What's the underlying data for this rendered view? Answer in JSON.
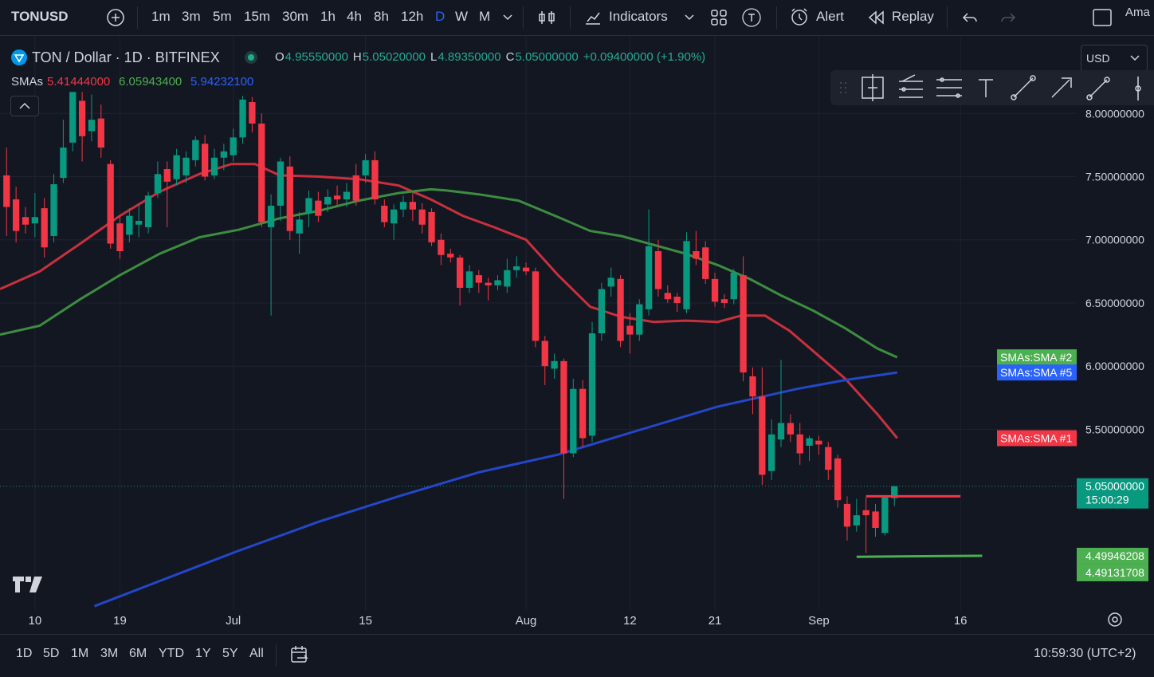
{
  "toolbar": {
    "symbol": "TONUSD",
    "intervals": [
      "1m",
      "3m",
      "5m",
      "15m",
      "30m",
      "1h",
      "4h",
      "8h",
      "12h",
      "D",
      "W",
      "M"
    ],
    "indicators": "Indicators",
    "alert": "Alert",
    "replay": "Replay",
    "account": "Ama"
  },
  "legend": {
    "title": "TON / Dollar · 1D · BITFINEX",
    "ohlc": [
      [
        "O",
        "4.95550000"
      ],
      [
        "H",
        "5.05020000"
      ],
      [
        "L",
        "4.89350000"
      ],
      [
        "C",
        "5.05000000"
      ]
    ],
    "change": "+0.09400000 (+1.90%)",
    "sma_label": "SMAs",
    "sma_values": [
      "5.41444000",
      "6.05943400",
      "5.94232100"
    ],
    "currency": "USD"
  },
  "bottom_bar": {
    "ranges": [
      "1D",
      "5D",
      "1M",
      "3M",
      "6M",
      "YTD",
      "1Y",
      "5Y",
      "All"
    ],
    "clock": "10:59:30 (UTC+2)"
  },
  "chart_data": {
    "type": "candlestick",
    "up_color": "#089981",
    "down_color": "#f23645",
    "open": [
      7.51,
      7.32,
      7.18,
      7.13,
      7.25,
      7.03,
      7.49,
      7.77,
      8.1,
      7.86,
      7.96,
      7.6,
      7.13,
      7.04,
      7.12,
      7.1,
      7.37,
      7.56,
      7.48,
      7.51,
      7.63,
      7.76,
      7.51,
      7.65,
      7.67,
      7.81,
      8.09,
      7.92,
      7.1,
      7.27,
      7.58,
      7.05,
      7.21,
      7.31,
      7.28,
      7.35,
      7.32,
      7.51,
      7.51,
      7.63,
      7.27,
      7.13,
      7.24,
      7.3,
      7.24,
      7.22,
      7.0,
      6.89,
      6.86,
      6.62,
      6.72,
      6.66,
      6.64,
      6.63,
      6.76,
      6.78,
      6.75,
      6.2,
      5.98,
      6.04,
      5.31,
      5.82,
      5.45,
      6.26,
      6.63,
      6.69,
      6.32,
      6.25,
      6.45,
      6.91,
      6.58,
      6.55,
      6.45,
      6.91,
      6.94,
      6.69,
      6.53,
      6.53,
      6.72,
      5.92,
      5.76,
      5.17,
      5.42,
      5.55,
      5.46,
      5.37,
      5.41,
      5.36,
      5.27,
      4.91,
      4.74,
      4.86,
      4.85,
      4.68,
      4.9555
    ],
    "high": [
      7.73,
      7.42,
      7.26,
      7.37,
      7.33,
      7.52,
      7.95,
      8.17,
      8.17,
      8.15,
      8.07,
      7.63,
      7.19,
      7.25,
      7.28,
      7.38,
      7.62,
      7.62,
      7.72,
      7.7,
      7.82,
      7.83,
      7.72,
      7.76,
      7.88,
      8.14,
      8.13,
      8.0,
      7.36,
      7.65,
      7.66,
      7.22,
      7.39,
      7.38,
      7.4,
      7.43,
      7.45,
      7.6,
      7.68,
      7.7,
      7.32,
      7.28,
      7.35,
      7.37,
      7.29,
      7.25,
      7.05,
      6.93,
      6.88,
      6.8,
      6.76,
      6.7,
      6.72,
      6.85,
      6.87,
      6.82,
      6.78,
      6.24,
      6.1,
      6.06,
      5.9,
      5.89,
      6.35,
      6.66,
      6.78,
      6.72,
      6.42,
      6.53,
      7.24,
      7.0,
      6.64,
      6.58,
      7.06,
      7.07,
      6.99,
      6.74,
      6.57,
      6.77,
      6.87,
      5.99,
      5.99,
      5.58,
      6.05,
      5.62,
      5.55,
      5.45,
      5.45,
      5.4,
      5.3,
      4.97,
      4.95,
      4.96,
      4.91,
      4.98,
      5.0502
    ],
    "low": [
      7.03,
      6.98,
      7.05,
      7.02,
      6.86,
      6.98,
      7.45,
      7.7,
      7.62,
      7.78,
      7.65,
      6.93,
      6.85,
      6.98,
      7.02,
      7.05,
      7.33,
      7.1,
      7.43,
      7.45,
      7.58,
      7.47,
      7.48,
      7.55,
      7.62,
      7.76,
      7.85,
      7.1,
      6.4,
      7.15,
      7.0,
      6.89,
      7.1,
      7.14,
      7.22,
      7.27,
      7.26,
      7.27,
      7.45,
      7.28,
      7.1,
      7.0,
      7.18,
      7.15,
      7.05,
      6.95,
      6.8,
      6.82,
      6.48,
      6.58,
      6.58,
      6.52,
      6.6,
      6.58,
      6.7,
      6.72,
      6.15,
      5.85,
      5.9,
      4.95,
      5.28,
      5.36,
      5.4,
      6.2,
      6.55,
      6.15,
      6.1,
      6.2,
      6.4,
      6.55,
      6.5,
      6.43,
      6.42,
      6.8,
      6.65,
      6.47,
      6.46,
      6.49,
      5.88,
      5.62,
      5.06,
      5.1,
      5.36,
      5.4,
      5.22,
      5.25,
      5.3,
      5.1,
      4.88,
      4.62,
      4.69,
      4.52,
      4.65,
      4.66,
      4.8935
    ],
    "close": [
      7.26,
      7.07,
      7.12,
      7.18,
      6.94,
      7.44,
      7.73,
      8.17,
      7.82,
      7.95,
      7.73,
      6.97,
      6.91,
      7.19,
      7.15,
      7.35,
      7.52,
      7.46,
      7.67,
      7.65,
      7.79,
      7.5,
      7.65,
      7.7,
      7.81,
      8.11,
      7.92,
      7.14,
      7.27,
      7.62,
      7.07,
      7.16,
      7.33,
      7.19,
      7.34,
      7.32,
      7.38,
      7.31,
      7.63,
      7.32,
      7.14,
      7.24,
      7.3,
      7.24,
      7.12,
      6.98,
      6.88,
      6.86,
      6.62,
      6.75,
      6.66,
      6.64,
      6.68,
      6.76,
      6.79,
      6.75,
      6.2,
      6.0,
      6.04,
      5.31,
      5.82,
      5.43,
      6.26,
      6.61,
      6.7,
      6.2,
      6.25,
      6.49,
      6.95,
      6.61,
      6.53,
      6.5,
      6.99,
      6.85,
      6.69,
      6.51,
      6.5,
      6.74,
      5.95,
      5.76,
      5.14,
      5.46,
      5.55,
      5.46,
      5.31,
      5.43,
      5.38,
      5.18,
      4.94,
      4.73,
      4.82,
      4.82,
      4.72,
      4.96,
      5.05
    ],
    "last_price_label": "5.05000000",
    "countdown": "15:00:29",
    "series": [
      {
        "name": "SMAs:SMA #1",
        "color": "#f23645",
        "line_color": "#c8303e",
        "x": [
          -0.7,
          3.5,
          7.8,
          12.0,
          16.2,
          20.4,
          23.8,
          26.3,
          28.9,
          33.1,
          37.3,
          41.5,
          44.9,
          48.3,
          51.6,
          55.0,
          58.4,
          61.8,
          65.1,
          68.5,
          71.9,
          75.3,
          77.8,
          80.3,
          82.9,
          85.4,
          88.8,
          92.2,
          94.3
        ],
        "values": [
          6.61,
          6.75,
          6.97,
          7.19,
          7.38,
          7.52,
          7.6,
          7.6,
          7.51,
          7.5,
          7.48,
          7.43,
          7.32,
          7.19,
          7.1,
          7.0,
          6.72,
          6.47,
          6.39,
          6.35,
          6.36,
          6.35,
          6.4,
          6.4,
          6.28,
          6.12,
          5.9,
          5.62,
          5.43
        ]
      },
      {
        "name": "SMAs:SMA #2",
        "color": "#4caf50",
        "line_color": "#3d8d40",
        "x": [
          -0.7,
          3.5,
          7.8,
          12.0,
          16.2,
          20.4,
          24.6,
          28.9,
          33.1,
          37.3,
          41.5,
          44.9,
          46.6,
          50.0,
          54.2,
          58.4,
          61.8,
          65.1,
          68.5,
          71.9,
          75.3,
          78.7,
          82.0,
          85.4,
          88.8,
          92.2,
          94.3
        ],
        "values": [
          6.25,
          6.32,
          6.53,
          6.72,
          6.89,
          7.02,
          7.08,
          7.17,
          7.23,
          7.31,
          7.37,
          7.4,
          7.39,
          7.36,
          7.31,
          7.18,
          7.07,
          7.03,
          6.96,
          6.89,
          6.8,
          6.69,
          6.56,
          6.44,
          6.3,
          6.14,
          6.07
        ]
      },
      {
        "name": "SMAs:SMA #5",
        "color": "#2962ff",
        "line_color": "#2447c9",
        "x": [
          9.3,
          16.2,
          24.6,
          33.1,
          41.5,
          50.0,
          58.4,
          66.8,
          75.3,
          83.7,
          88.8,
          94.3
        ],
        "values": [
          4.1,
          4.3,
          4.54,
          4.77,
          4.97,
          5.16,
          5.3,
          5.49,
          5.68,
          5.82,
          5.89,
          5.95
        ]
      }
    ],
    "drawings": [
      {
        "color": "#f23645",
        "x": [
          91,
          101
        ],
        "values": [
          4.97,
          4.97
        ]
      },
      {
        "color": "#4caf50",
        "x": [
          90,
          103.3
        ],
        "values": [
          4.49131708,
          4.49946208
        ]
      }
    ],
    "xlim": [
      -0.7,
      112.8
    ],
    "xticks": [
      {
        "value": 3,
        "label": "10"
      },
      {
        "value": 12,
        "label": "19"
      },
      {
        "value": 24,
        "label": "Jul"
      },
      {
        "value": 38,
        "label": "15"
      },
      {
        "value": 55,
        "label": "Aug"
      },
      {
        "value": 66,
        "label": "12"
      },
      {
        "value": 75,
        "label": "21"
      },
      {
        "value": 86,
        "label": "Sep"
      },
      {
        "value": 101,
        "label": "16"
      }
    ],
    "ylim": [
      4.07,
      8.33
    ],
    "yticks": [
      {
        "value": 8,
        "label": "8.00000000"
      },
      {
        "value": 7.5,
        "label": "7.50000000"
      },
      {
        "value": 7,
        "label": "7.00000000"
      },
      {
        "value": 6.5,
        "label": "6.50000000"
      },
      {
        "value": 6,
        "label": "6.00000000"
      },
      {
        "value": 5.5,
        "label": "5.50000000"
      }
    ],
    "grid": true
  }
}
